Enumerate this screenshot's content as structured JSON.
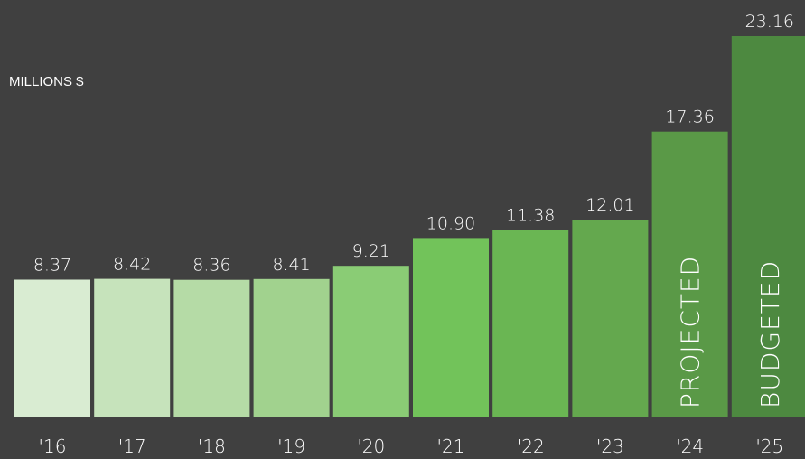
{
  "chart_data": {
    "type": "bar",
    "unit_label": "MILLIONS $",
    "categories": [
      "'16",
      "'17",
      "'18",
      "'19",
      "'20",
      "'21",
      "'22",
      "'23",
      "'24",
      "'25"
    ],
    "values": [
      8.37,
      8.42,
      8.36,
      8.41,
      9.21,
      10.9,
      11.38,
      12.01,
      17.36,
      23.16
    ],
    "value_labels": [
      "8.37",
      "8.42",
      "8.36",
      "8.41",
      "9.21",
      "10.90",
      "11.38",
      "12.01",
      "17.36",
      "23.16"
    ],
    "annotations": [
      "",
      "",
      "",
      "",
      "",
      "",
      "",
      "",
      "PROJECTED",
      "BUDGETED"
    ],
    "bar_colors": [
      "#d9ecd2",
      "#c6e3bb",
      "#b5dba6",
      "#a1d28e",
      "#8acc75",
      "#72c35a",
      "#6ab653",
      "#64a84e",
      "#5a9947",
      "#4d8940"
    ],
    "ylim": [
      0,
      23.16
    ],
    "grid": false,
    "legend": "none",
    "background": "#404040"
  }
}
